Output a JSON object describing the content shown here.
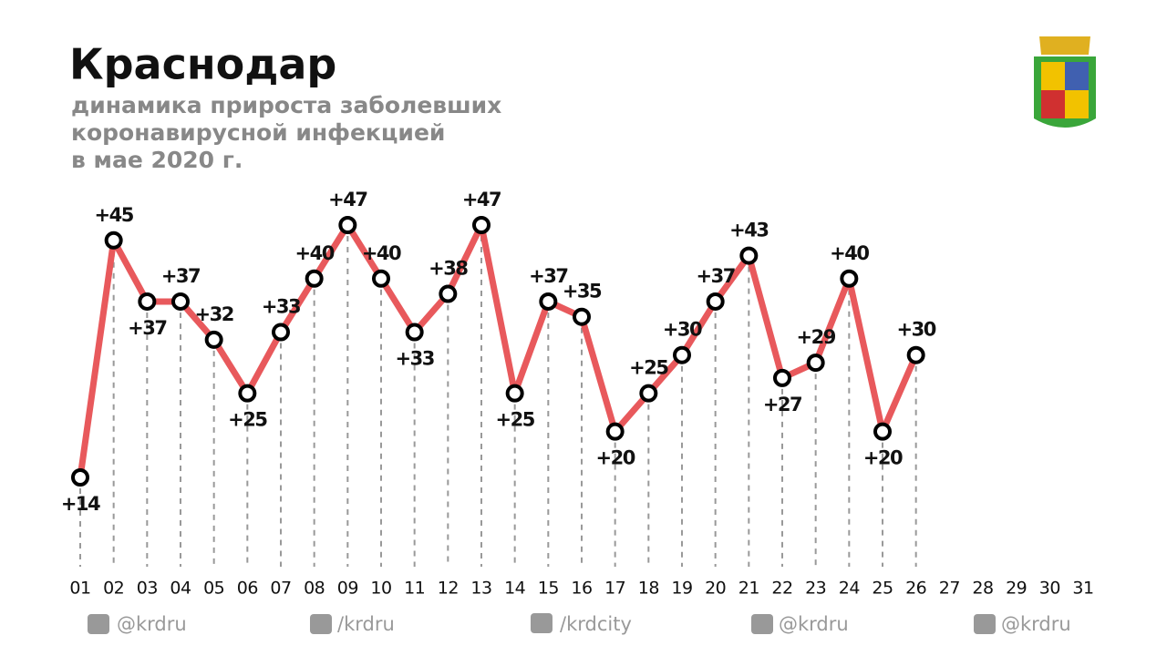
{
  "title": "Краснодар",
  "subtitle": [
    "динамика прироста заболевших",
    "коронавирусной инфекцией",
    "в мае 2020 г."
  ],
  "chart_data": {
    "type": "line",
    "categories": [
      "01",
      "02",
      "03",
      "04",
      "05",
      "06",
      "07",
      "08",
      "09",
      "10",
      "11",
      "12",
      "13",
      "14",
      "15",
      "16",
      "17",
      "18",
      "19",
      "20",
      "21",
      "22",
      "23",
      "24",
      "25",
      "26",
      "27",
      "28",
      "29",
      "30",
      "31"
    ],
    "series": [
      {
        "color": "#e8595c",
        "values": [
          14,
          45,
          37,
          37,
          32,
          25,
          33,
          40,
          47,
          40,
          33,
          38,
          47,
          25,
          37,
          35,
          20,
          25,
          30,
          37,
          43,
          27,
          29,
          40,
          20,
          30,
          null,
          null,
          null,
          null,
          null
        ],
        "value_labels": [
          "+14",
          "+45",
          "+37",
          "+37",
          "+32",
          "+25",
          "+33",
          "+40",
          "+47",
          "+40",
          "+33",
          "+38",
          "+47",
          "+25",
          "+37",
          "+35",
          "+20",
          "+25",
          "+30",
          "+37",
          "+43",
          "+27",
          "+29",
          "+40",
          "+20",
          "+30",
          null,
          null,
          null,
          null,
          null
        ]
      }
    ]
  },
  "footer": [
    "@krdru",
    "/krdru",
    "/krdcity",
    "@krdru",
    "@krdru"
  ]
}
